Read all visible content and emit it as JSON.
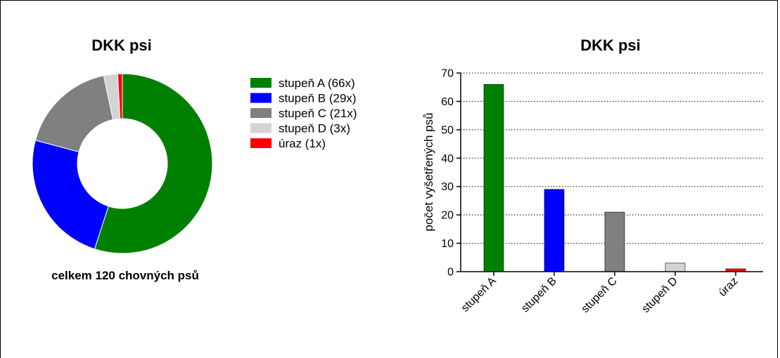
{
  "chart_data": [
    {
      "type": "pie",
      "title": "DKK psi",
      "subtitle": "celkem 120 chovných psů",
      "donut": true,
      "slices": [
        {
          "label": "stupeň A (66x)",
          "value": 66,
          "color": "#008000"
        },
        {
          "label": "stupeň B (29x)",
          "value": 29,
          "color": "#0000ff"
        },
        {
          "label": "stupeň C (21x)",
          "value": 21,
          "color": "#808080"
        },
        {
          "label": "stupeň D (3x)",
          "value": 3,
          "color": "#d3d3d3"
        },
        {
          "label": "úraz (1x)",
          "value": 1,
          "color": "#ff0000"
        }
      ],
      "legend_position": "right"
    },
    {
      "type": "bar",
      "title": "DKK psi",
      "xlabel": "",
      "ylabel": "počet vyšetřených psů",
      "categories": [
        "stupeň A",
        "stupeň B",
        "stupeň C",
        "stupeň  D",
        "úraz"
      ],
      "values": [
        66,
        29,
        21,
        3,
        1
      ],
      "colors": [
        "#008000",
        "#0000ff",
        "#808080",
        "#d3d3d3",
        "#ff0000"
      ],
      "ylim": [
        0,
        70
      ],
      "yticks": [
        "0",
        "10",
        "20",
        "30",
        "40",
        "50",
        "60",
        "70"
      ],
      "grid": "horizontal dotted"
    }
  ]
}
